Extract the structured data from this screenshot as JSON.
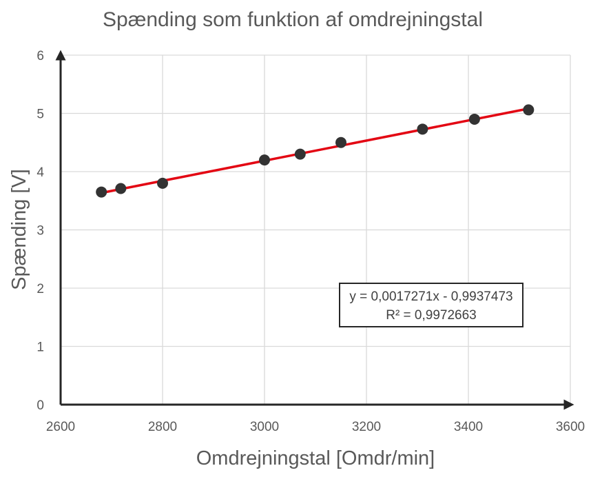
{
  "chart_data": {
    "type": "scatter",
    "title": "Spænding som funktion af omdrejningstal",
    "xlabel": "Omdrejningstal [Omdr/min]",
    "ylabel": "Spænding [V]",
    "xlim": [
      2600,
      3600
    ],
    "ylim": [
      0,
      6
    ],
    "xticks": [
      "2600",
      "2800",
      "3000",
      "3200",
      "3400",
      "3600"
    ],
    "yticks": [
      "0",
      "1",
      "2",
      "3",
      "4",
      "5",
      "6"
    ],
    "grid": true,
    "x": [
      2680,
      2718,
      2800,
      3000,
      3070,
      3150,
      3310,
      3412,
      3518
    ],
    "y": [
      3.65,
      3.71,
      3.8,
      4.2,
      4.3,
      4.5,
      4.73,
      4.9,
      5.06
    ],
    "trendline": {
      "type": "linear",
      "slope": 0.0017271,
      "intercept": -0.9937473,
      "x_range": [
        2680,
        3518
      ],
      "equation": "y = 0,0017271x - 0,9937473",
      "r_squared": "R² = 0,9972663"
    },
    "colors": {
      "points": "#333333",
      "trendline": "#e30613",
      "axes": "#262626",
      "grid": "#d9d9d9"
    }
  }
}
